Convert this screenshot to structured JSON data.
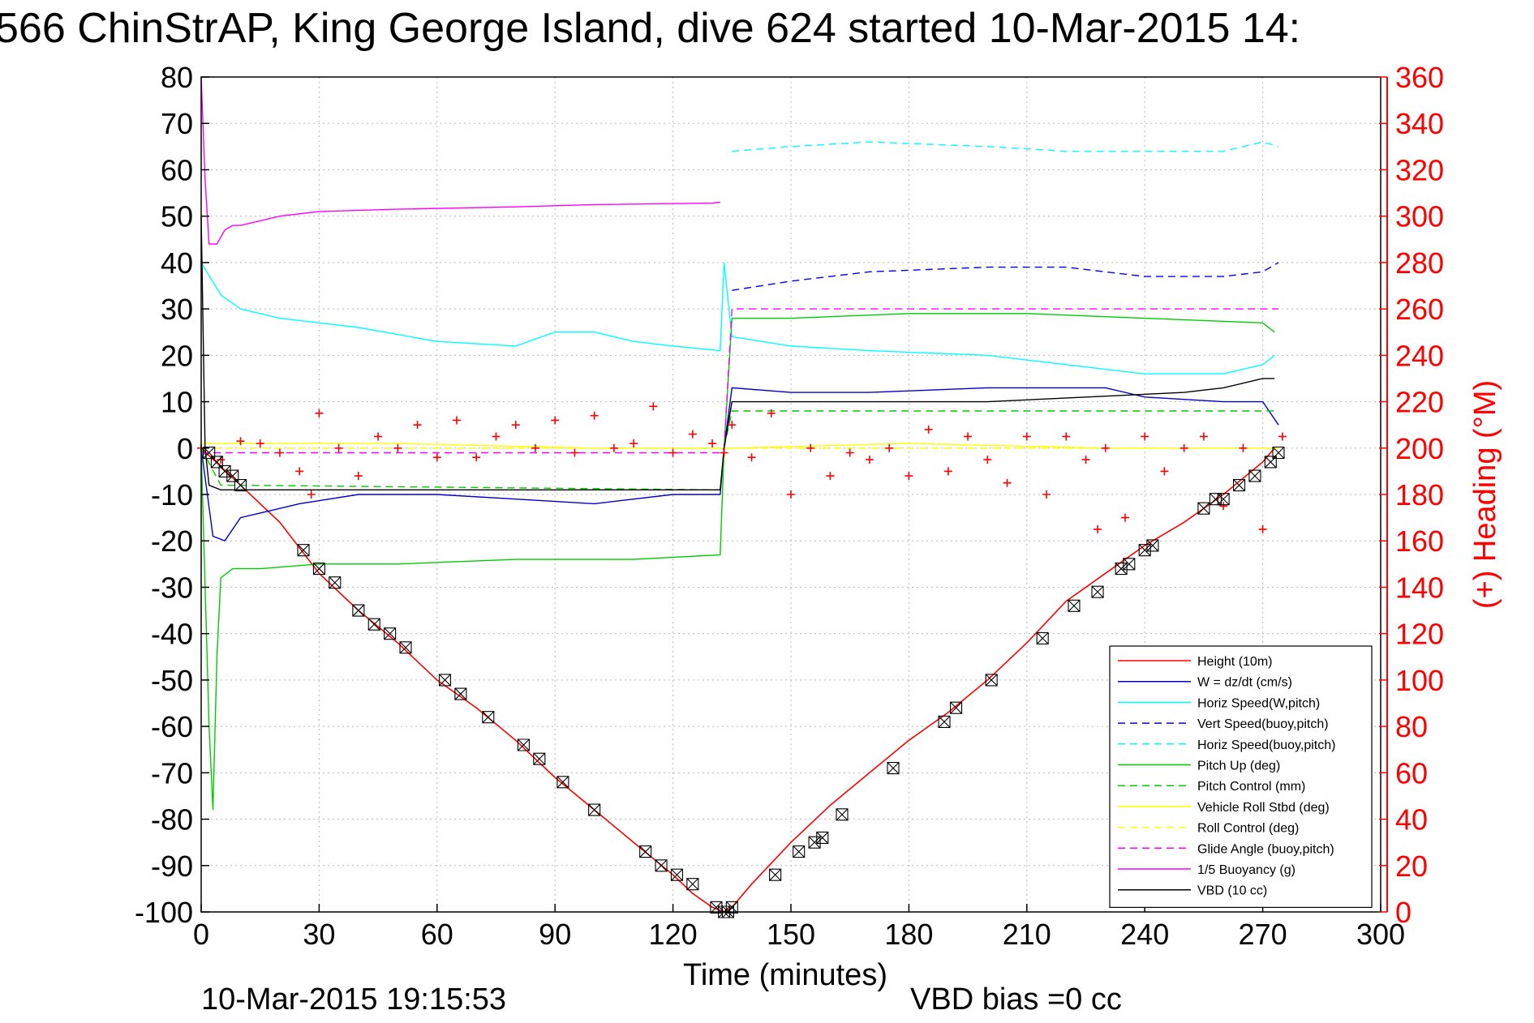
{
  "chart_data": {
    "type": "line",
    "title": "566 ChinStrAP, King George Island, dive 624 started 10-Mar-2015 14:",
    "xlabel": "Time (minutes)",
    "ylabel_right": "(+) Heading (°M)",
    "xlim": [
      0,
      300
    ],
    "ylim": [
      -100,
      80
    ],
    "ylim_right": [
      0,
      360
    ],
    "xticks": [
      0,
      30,
      60,
      90,
      120,
      150,
      180,
      210,
      240,
      270,
      300
    ],
    "yticks": [
      -100,
      -90,
      -80,
      -70,
      -60,
      -50,
      -40,
      -30,
      -20,
      -10,
      0,
      10,
      20,
      30,
      40,
      50,
      60,
      70,
      80
    ],
    "yticks_right": [
      0,
      20,
      40,
      60,
      80,
      100,
      120,
      140,
      160,
      180,
      200,
      220,
      240,
      260,
      280,
      300,
      320,
      340,
      360
    ],
    "grid": true,
    "legend_position": "bottom-right",
    "footer_left": "10-Mar-2015 19:15:53",
    "footer_right": "VBD bias =0 cc",
    "colors": {
      "axis_right": "#ff0000",
      "heading": "#ff0000"
    },
    "series": [
      {
        "name": "Height (10m)",
        "color": "#ff0000",
        "dash": "solid",
        "x": [
          0,
          10,
          20,
          30,
          40,
          50,
          60,
          70,
          80,
          90,
          100,
          110,
          120,
          125,
          130,
          133,
          135,
          140,
          150,
          160,
          170,
          180,
          190,
          200,
          210,
          220,
          230,
          240,
          250,
          260,
          270,
          273
        ],
        "y": [
          0,
          -8,
          -16,
          -27,
          -35,
          -42,
          -50,
          -56,
          -63,
          -71,
          -78,
          -85,
          -92,
          -96,
          -99,
          -100,
          -99,
          -94,
          -85,
          -77,
          -70,
          -63,
          -57,
          -50,
          -42,
          -33,
          -27,
          -21,
          -16,
          -10,
          -3,
          0
        ]
      },
      {
        "name": "W = dz/dt (cm/s)",
        "color": "#0000cc",
        "dash": "solid",
        "x": [
          0,
          3,
          6,
          10,
          15,
          25,
          40,
          60,
          80,
          100,
          120,
          132,
          133,
          135,
          150,
          170,
          200,
          230,
          240,
          260,
          270,
          274
        ],
        "y": [
          0,
          -19,
          -20,
          -15,
          -14,
          -12,
          -10,
          -10,
          -11,
          -12,
          -10,
          -10,
          0,
          13,
          12,
          12,
          13,
          13,
          11,
          10,
          10,
          5
        ]
      },
      {
        "name": "Horiz Speed(W,pitch)",
        "color": "#00ffff",
        "dash": "solid",
        "x": [
          0,
          5,
          10,
          20,
          40,
          60,
          80,
          90,
          100,
          110,
          120,
          132,
          133,
          135,
          150,
          170,
          200,
          220,
          240,
          260,
          270,
          273
        ],
        "y": [
          40,
          33,
          30,
          28,
          26,
          23,
          22,
          25,
          25,
          23,
          22,
          21,
          40,
          24,
          22,
          21,
          20,
          18,
          16,
          16,
          18,
          20
        ]
      },
      {
        "name": "Vert Speed(buoy,pitch)",
        "color": "#0000ff",
        "dash": "dashed",
        "x": [
          135,
          150,
          170,
          200,
          220,
          240,
          260,
          270,
          274
        ],
        "y": [
          34,
          36,
          38,
          39,
          39,
          37,
          37,
          38,
          40
        ]
      },
      {
        "name": "Horiz Speed(buoy,pitch)",
        "color": "#00ffff",
        "dash": "dashed",
        "x": [
          135,
          150,
          170,
          200,
          220,
          240,
          260,
          270,
          274
        ],
        "y": [
          64,
          65,
          66,
          65,
          64,
          64,
          64,
          66,
          65
        ]
      },
      {
        "name": "Pitch Up (deg)",
        "color": "#00cc00",
        "dash": "solid",
        "x": [
          0,
          2,
          3,
          4,
          5,
          8,
          15,
          30,
          50,
          80,
          110,
          132,
          133,
          135,
          150,
          180,
          210,
          240,
          270,
          273
        ],
        "y": [
          0,
          -60,
          -78,
          -45,
          -28,
          -26,
          -26,
          -25,
          -25,
          -24,
          -24,
          -23,
          0,
          28,
          28,
          29,
          29,
          28,
          27,
          25
        ]
      },
      {
        "name": "Pitch Control (mm)",
        "color": "#00cc00",
        "dash": "dashed",
        "x": [
          0,
          5,
          10,
          132,
          133,
          135,
          274
        ],
        "y": [
          0,
          -8,
          -8,
          -9,
          0,
          8,
          8
        ]
      },
      {
        "name": "Vehicle Roll Stbd (deg)",
        "color": "#ffff00",
        "dash": "solid",
        "x": [
          0,
          10,
          50,
          100,
          132,
          135,
          180,
          230,
          274
        ],
        "y": [
          1,
          1,
          1,
          0,
          0,
          0,
          1,
          0,
          0
        ]
      },
      {
        "name": "Roll Control (deg)",
        "color": "#ffff00",
        "dash": "dashed",
        "x": [
          0,
          274
        ],
        "y": [
          0,
          0
        ]
      },
      {
        "name": "Glide Angle (buoy,pitch)",
        "color": "#ff00ff",
        "dash": "dashed",
        "x": [
          0,
          132,
          133,
          135,
          274
        ],
        "y": [
          -1,
          -1,
          0,
          30,
          30
        ]
      },
      {
        "name": "1/5 Buoyancy (g)",
        "color": "#ff00ff",
        "dash": "solid",
        "x": [
          0,
          1,
          2,
          4,
          6,
          8,
          10,
          20,
          30,
          50,
          80,
          100,
          130,
          132
        ],
        "y": [
          80,
          58,
          44,
          44,
          47,
          48,
          48,
          50,
          51,
          51.5,
          52,
          52.5,
          52.8,
          53
        ]
      },
      {
        "name": "VBD (10 cc)",
        "color": "#000000",
        "dash": "solid",
        "x": [
          0,
          1,
          2,
          5,
          10,
          132,
          133,
          135,
          140,
          200,
          250,
          260,
          265,
          270,
          273
        ],
        "y": [
          50,
          0,
          -8,
          -9,
          -9,
          -9,
          0,
          10,
          10,
          10,
          12,
          13,
          14,
          15,
          15
        ]
      }
    ],
    "heading_series": {
      "name": "(+) Heading",
      "color": "#ff0000",
      "x": [
        0,
        5,
        10,
        15,
        20,
        25,
        28,
        30,
        35,
        40,
        45,
        50,
        55,
        60,
        65,
        70,
        75,
        80,
        85,
        90,
        95,
        100,
        105,
        110,
        115,
        120,
        125,
        130,
        133,
        135,
        140,
        145,
        150,
        155,
        160,
        165,
        170,
        175,
        180,
        185,
        190,
        195,
        200,
        205,
        210,
        215,
        220,
        225,
        228,
        230,
        235,
        240,
        245,
        250,
        255,
        260,
        265,
        270,
        275
      ],
      "y": [
        200,
        195,
        203,
        202,
        198,
        190,
        180,
        215,
        200,
        188,
        205,
        200,
        210,
        196,
        212,
        196,
        205,
        210,
        200,
        212,
        198,
        214,
        200,
        202,
        218,
        198,
        206,
        202,
        198,
        210,
        196,
        215,
        180,
        200,
        188,
        198,
        195,
        200,
        188,
        208,
        190,
        205,
        195,
        185,
        205,
        180,
        205,
        195,
        165,
        200,
        170,
        205,
        190,
        200,
        205,
        175,
        200,
        165,
        205
      ]
    },
    "markers": {
      "name": "glider position markers",
      "color": "#000000",
      "x": [
        2,
        4,
        6,
        8,
        10,
        26,
        30,
        34,
        40,
        44,
        48,
        52,
        62,
        66,
        73,
        82,
        86,
        92,
        100,
        113,
        117,
        121,
        125,
        131,
        133,
        134,
        135,
        146,
        152,
        156,
        158,
        163,
        176,
        189,
        192,
        201,
        214,
        222,
        228,
        234,
        236,
        240,
        242,
        255,
        258,
        260,
        264,
        268,
        272,
        274
      ],
      "y": [
        -1,
        -3,
        -5,
        -6,
        -8,
        -22,
        -26,
        -29,
        -35,
        -38,
        -40,
        -43,
        -50,
        -53,
        -58,
        -64,
        -67,
        -72,
        -78,
        -87,
        -90,
        -92,
        -94,
        -99,
        -100,
        -100,
        -99,
        -92,
        -87,
        -85,
        -84,
        -79,
        -69,
        -59,
        -56,
        -50,
        -41,
        -34,
        -31,
        -26,
        -25,
        -22,
        -21,
        -13,
        -11,
        -11,
        -8,
        -6,
        -3,
        -1
      ]
    }
  }
}
